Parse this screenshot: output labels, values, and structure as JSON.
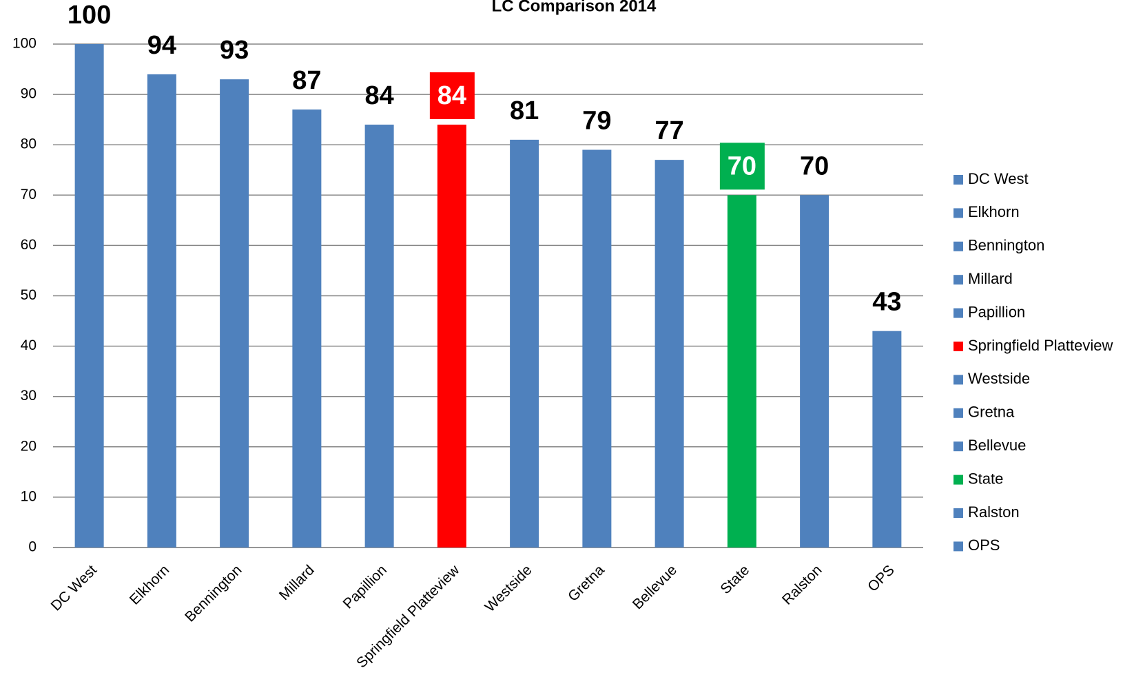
{
  "chart_data": {
    "type": "bar",
    "title": "LC Comparison 2014",
    "categories": [
      "DC West",
      "Elkhorn",
      "Bennington",
      "Millard",
      "Papillion",
      "Springfield Platteview",
      "Westside",
      "Gretna",
      "Bellevue",
      "State",
      "Ralston",
      "OPS"
    ],
    "values": [
      100,
      94,
      93,
      87,
      84,
      84,
      81,
      79,
      77,
      70,
      70,
      43
    ],
    "color": "#4f81bd",
    "colors": [
      "#4f81bd",
      "#4f81bd",
      "#4f81bd",
      "#4f81bd",
      "#4f81bd",
      "#ff0000",
      "#4f81bd",
      "#4f81bd",
      "#4f81bd",
      "#00b050",
      "#4f81bd",
      "#4f81bd"
    ],
    "ylim": [
      0,
      100
    ],
    "yticks": [
      0,
      10,
      20,
      30,
      40,
      50,
      60,
      70,
      80,
      90,
      100
    ],
    "grid": true,
    "legend": "right"
  }
}
